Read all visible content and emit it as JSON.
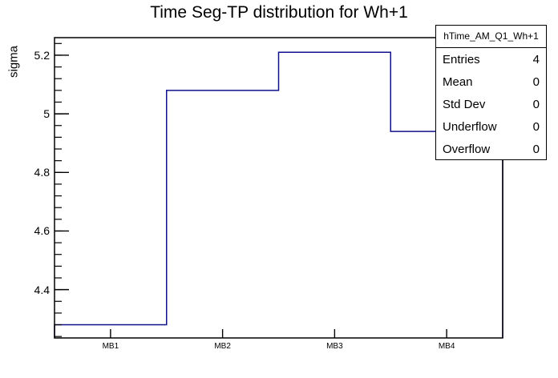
{
  "title": "Time Seg-TP distribution for Wh+1",
  "y_axis_label": "sigma",
  "stats_box": {
    "title": "hTime_AM_Q1_Wh+1",
    "rows": [
      {
        "label": "Entries",
        "value": "4"
      },
      {
        "label": "Mean",
        "value": "0"
      },
      {
        "label": "Std Dev",
        "value": "0"
      },
      {
        "label": "Underflow",
        "value": "0"
      },
      {
        "label": "Overflow",
        "value": "0"
      }
    ]
  },
  "colors": {
    "line": "#10108c",
    "axis": "#000000",
    "background": "#ffffff"
  },
  "chart_data": {
    "type": "step-histogram",
    "categories": [
      "MB1",
      "MB2",
      "MB3",
      "MB4"
    ],
    "values": [
      4.28,
      5.08,
      5.21,
      4.94
    ],
    "title": "Time Seg-TP distribution for Wh+1",
    "xlabel": "",
    "ylabel": "sigma",
    "ylim": [
      4.235,
      5.26
    ],
    "yticks": [
      4.4,
      4.6,
      4.8,
      5,
      5.2
    ],
    "ytick_labels": [
      "4.4",
      "4.6",
      "4.8",
      "5",
      "5.2"
    ],
    "minor_tick_step": 0.04,
    "grid": false,
    "legend": false
  }
}
